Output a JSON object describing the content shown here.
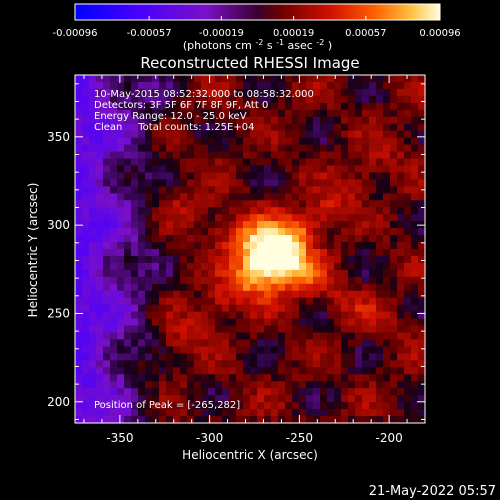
{
  "chart_data": {
    "type": "heatmap",
    "title": "Reconstructed RHESSI Image",
    "xlabel": "Heliocentric X (arcsec)",
    "ylabel": "Heliocentric Y (arcsec)",
    "xlim": [
      -375,
      -180
    ],
    "ylim": [
      188,
      385
    ],
    "x_ticks": [
      -350,
      -300,
      -250,
      -200
    ],
    "y_ticks": [
      200,
      250,
      300,
      350
    ],
    "colorbar": {
      "ticks": [
        -0.00096,
        -0.00057,
        -0.00019,
        0.00019,
        0.00057,
        0.00096
      ],
      "tick_labels": [
        "-0.00096",
        "-0.00057",
        "-0.00019",
        "0.00019",
        "0.00057",
        "0.00096"
      ],
      "range": [
        -0.00096,
        0.00096
      ],
      "units_parts": [
        "(photons cm",
        "-2",
        " s",
        "-1",
        " asec",
        "-2",
        ")"
      ]
    },
    "annotations": [
      "10-May-2015 08:52:32.000 to 08:58:32.000",
      "Detectors: 3F 5F 6F 7F 8F 9F, Att 0",
      "Energy Range: 12.0 - 25.0 keV",
      "Clean     Total counts: 1.25E+04"
    ],
    "peak_label": "Position of Peak = [-265,282]",
    "peak": [
      -265,
      282
    ],
    "grid": false
  },
  "footer": {
    "timestamp": "21-May-2022 05:57"
  }
}
